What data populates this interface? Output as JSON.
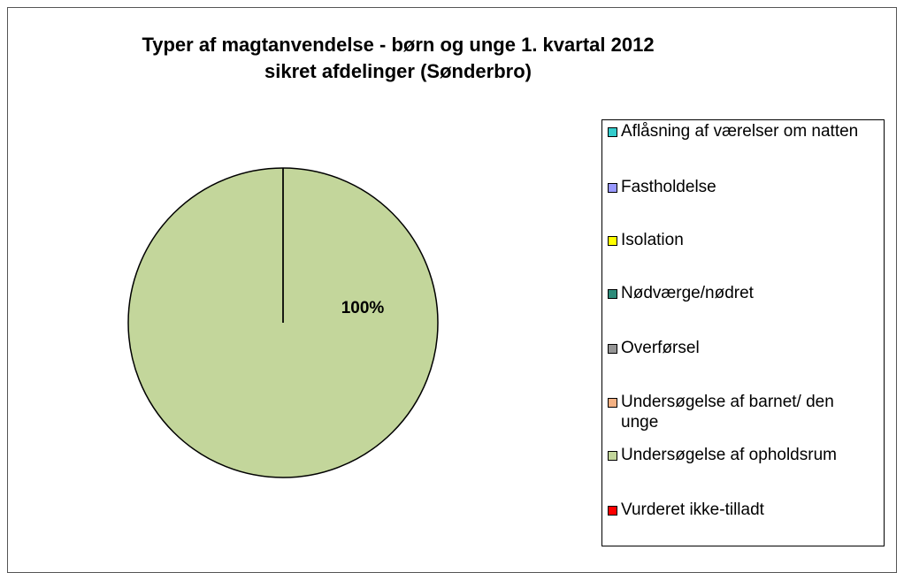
{
  "chart_data": {
    "type": "pie",
    "title": [
      "Typer af magtanvendelse  - børn og unge 1. kvartal 2012",
      "sikret afdelinger (Sønderbro)"
    ],
    "categories": [
      "Aflåsning af værelser om natten",
      "Fastholdelse",
      "Isolation",
      "Nødværge/nødret",
      "Overførsel",
      "Undersøgelse af barnet/ den unge",
      "Undersøgelse af opholdsrum",
      "Vurderet ikke-tilladt"
    ],
    "values": [
      0,
      0,
      0,
      0,
      0,
      0,
      100,
      0
    ],
    "value_labels": [
      null,
      null,
      null,
      null,
      null,
      null,
      "100%",
      null
    ],
    "colors": [
      "#33cccc",
      "#9999ff",
      "#ffff00",
      "#2e8b7a",
      "#969696",
      "#f4b183",
      "#c3d69b",
      "#ff0000"
    ],
    "legend": "right"
  }
}
